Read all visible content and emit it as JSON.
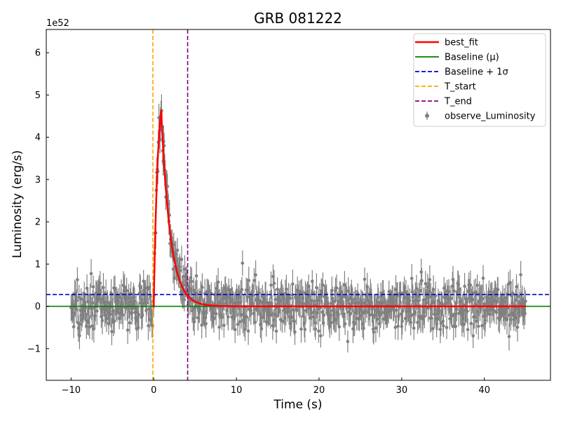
{
  "chart_data": {
    "type": "scatter",
    "title": "GRB 081222",
    "xlabel": "Time (s)",
    "ylabel": "Luminosity (erg/s)",
    "y_scale_label": "1e52",
    "xlim": [
      -13,
      48
    ],
    "ylim": [
      -1.75,
      6.55
    ],
    "xticks": [
      -10,
      0,
      10,
      20,
      30,
      40
    ],
    "yticks": [
      -1,
      0,
      1,
      2,
      3,
      4,
      5,
      6
    ],
    "xtick_labels": [
      "−10",
      "0",
      "10",
      "20",
      "30",
      "40"
    ],
    "ytick_labels": [
      "−1",
      "0",
      "1",
      "2",
      "3",
      "4",
      "5",
      "6"
    ],
    "legend_position": "top-right",
    "grid": false,
    "colors": {
      "observed": "#808080",
      "best_fit": "#ff0000",
      "baseline": "#008000",
      "baseline_sigma": "#0000cd",
      "t_start": "#ffa500",
      "t_end": "#800080"
    },
    "series": [
      {
        "name": "observe_Luminosity",
        "kind": "errorbar",
        "x_range": [
          -10,
          45
        ],
        "background_sigma": 0.28,
        "typical_error": 0.3,
        "peak_x": 0.9,
        "peak_y": 4.65
      },
      {
        "name": "best_fit",
        "kind": "line",
        "rise_tau": 0.5,
        "decay_tau": 1.1,
        "x": [
          0.0,
          0.2,
          0.4,
          0.6,
          0.8,
          0.9,
          1.0,
          1.2,
          1.4,
          1.6,
          1.8,
          2.0,
          2.3,
          2.6,
          3.0,
          3.5,
          4.0,
          4.5,
          5.0,
          6.0,
          7.0,
          8.0,
          10.0,
          15.0,
          45.0
        ],
        "y": [
          0.0,
          0.9,
          2.3,
          3.5,
          4.4,
          4.65,
          4.55,
          4.05,
          3.5,
          2.95,
          2.45,
          2.05,
          1.55,
          1.2,
          0.83,
          0.53,
          0.34,
          0.22,
          0.14,
          0.06,
          0.025,
          0.01,
          0.0,
          0.0,
          0.0
        ]
      },
      {
        "name": "Baseline (μ)",
        "kind": "hline",
        "y": 0.0
      },
      {
        "name": "Baseline + 1σ",
        "kind": "hline",
        "y": 0.28
      },
      {
        "name": "T_start",
        "kind": "vline",
        "x": -0.1
      },
      {
        "name": "T_end",
        "kind": "vline",
        "x": 4.1
      }
    ],
    "legend": [
      {
        "label": "best_fit",
        "style": "solid",
        "color": "#ff0000"
      },
      {
        "label": "Baseline (μ)",
        "style": "solid",
        "color": "#008000"
      },
      {
        "label": "Baseline + 1σ",
        "style": "dashed",
        "color": "#0000cd"
      },
      {
        "label": "T_start",
        "style": "dashed",
        "color": "#ffa500"
      },
      {
        "label": "T_end",
        "style": "dashed",
        "color": "#800080"
      },
      {
        "label": "observe_Luminosity",
        "style": "errorbar",
        "color": "#808080"
      }
    ]
  }
}
